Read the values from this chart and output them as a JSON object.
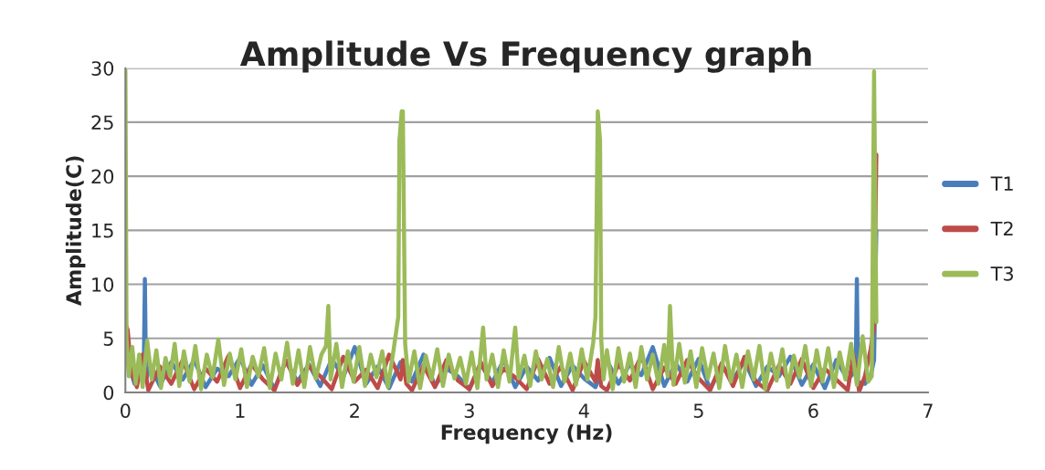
{
  "chart_data": {
    "type": "line",
    "title": "Amplitude Vs Frequency graph",
    "xlabel": "Frequency (Hz)",
    "ylabel": "Amplitude(C)",
    "xlim": [
      0,
      7
    ],
    "xticks": [
      0,
      1,
      2,
      3,
      4,
      5,
      6,
      7
    ],
    "ylim": [
      0,
      30
    ],
    "yticks": [
      0,
      5,
      10,
      15,
      20,
      25,
      30
    ],
    "grid": "y",
    "legend": "right",
    "marker": "none",
    "line_style": "solid",
    "series": [
      {
        "name": "T1",
        "color": "#4a7ebb",
        "x": [
          0,
          0.03,
          0.08,
          0.12,
          0.16,
          0.17,
          0.18,
          0.22,
          0.3,
          0.4,
          0.5,
          0.6,
          0.7,
          0.8,
          0.9,
          1.0,
          1.1,
          1.2,
          1.3,
          1.4,
          1.5,
          1.6,
          1.7,
          1.8,
          1.9,
          2.0,
          2.1,
          2.2,
          2.3,
          2.4,
          2.5,
          2.6,
          2.7,
          2.8,
          2.9,
          3.0,
          3.1,
          3.2,
          3.3,
          3.4,
          3.5,
          3.6,
          3.7,
          3.8,
          3.9,
          4.0,
          4.1,
          4.2,
          4.3,
          4.4,
          4.5,
          4.6,
          4.7,
          4.8,
          4.9,
          5.0,
          5.1,
          5.2,
          5.3,
          5.4,
          5.5,
          5.6,
          5.7,
          5.8,
          5.9,
          6.0,
          6.1,
          6.2,
          6.3,
          6.37,
          6.38,
          6.39,
          6.45,
          6.5,
          6.53,
          6.55
        ],
        "values": [
          6,
          2.5,
          0.8,
          1.5,
          2,
          10.5,
          1.2,
          2.5,
          0.6,
          2.8,
          1.2,
          3.0,
          0.5,
          2.2,
          1.5,
          3.2,
          0.7,
          2.5,
          0.3,
          2.9,
          1.0,
          2.6,
          0.6,
          3.1,
          1.4,
          4.2,
          0.8,
          2.4,
          0.4,
          2.8,
          1.0,
          3.5,
          0.6,
          2.2,
          1.5,
          0.3,
          2.6,
          0.9,
          3.0,
          0.5,
          2.4,
          1.1,
          3.2,
          0.6,
          2.5,
          1.3,
          0.5,
          3.0,
          0.8,
          2.6,
          1.6,
          4.2,
          0.6,
          2.7,
          1.0,
          3.1,
          0.3,
          2.5,
          1.2,
          2.9,
          0.6,
          2.4,
          1.5,
          3.3,
          0.7,
          2.6,
          0.4,
          3.0,
          1.2,
          2.0,
          10.5,
          1.0,
          0.8,
          1.5,
          3,
          15
        ]
      },
      {
        "name": "T2",
        "color": "#be4b48",
        "x": [
          0,
          0.02,
          0.05,
          0.1,
          0.15,
          0.2,
          0.3,
          0.4,
          0.5,
          0.6,
          0.7,
          0.8,
          0.9,
          1.0,
          1.1,
          1.2,
          1.3,
          1.4,
          1.5,
          1.6,
          1.7,
          1.8,
          1.9,
          2.0,
          2.1,
          2.2,
          2.3,
          2.4,
          2.42,
          2.45,
          2.5,
          2.6,
          2.7,
          2.8,
          2.9,
          3.0,
          3.1,
          3.2,
          3.3,
          3.4,
          3.5,
          3.6,
          3.7,
          3.8,
          3.9,
          4.0,
          4.1,
          4.12,
          4.15,
          4.2,
          4.3,
          4.4,
          4.5,
          4.6,
          4.7,
          4.8,
          4.9,
          5.0,
          5.1,
          5.2,
          5.3,
          5.4,
          5.5,
          5.6,
          5.7,
          5.8,
          5.9,
          6.0,
          6.1,
          6.2,
          6.3,
          6.35,
          6.4,
          6.45,
          6.5,
          6.53,
          6.55
        ],
        "values": [
          6.3,
          5.8,
          2,
          0.5,
          3.5,
          0.2,
          2.4,
          0.8,
          3.0,
          0.3,
          2.2,
          1.0,
          3.4,
          0.4,
          2.6,
          1.2,
          0.2,
          3.0,
          0.7,
          2.4,
          1.5,
          0.3,
          3.3,
          1.0,
          2.1,
          0.4,
          3.5,
          1.2,
          3.0,
          0.8,
          0.2,
          2.5,
          0.5,
          3.0,
          1.1,
          0.3,
          2.8,
          0.6,
          2.2,
          1.4,
          0.3,
          3.1,
          0.8,
          2.4,
          0.2,
          2.9,
          1.0,
          3.0,
          0.6,
          0.2,
          2.6,
          1.1,
          3.4,
          0.3,
          2.3,
          0.8,
          3.0,
          1.3,
          0.2,
          2.7,
          0.6,
          3.3,
          1.0,
          0.2,
          2.5,
          0.8,
          3.1,
          0.4,
          2.2,
          1.2,
          0.2,
          3.5,
          0.1,
          1.5,
          4,
          6.2,
          22
        ]
      },
      {
        "name": "T3",
        "color": "#9bbb59",
        "x": [
          0,
          0.01,
          0.03,
          0.06,
          0.09,
          0.12,
          0.15,
          0.19,
          0.23,
          0.27,
          0.31,
          0.35,
          0.39,
          0.43,
          0.47,
          0.51,
          0.56,
          0.61,
          0.66,
          0.71,
          0.76,
          0.81,
          0.86,
          0.91,
          0.96,
          1.01,
          1.06,
          1.11,
          1.16,
          1.21,
          1.26,
          1.31,
          1.36,
          1.41,
          1.46,
          1.51,
          1.56,
          1.61,
          1.66,
          1.71,
          1.75,
          1.77,
          1.79,
          1.84,
          1.89,
          1.94,
          1.99,
          2.04,
          2.09,
          2.14,
          2.19,
          2.24,
          2.29,
          2.34,
          2.38,
          2.39,
          2.41,
          2.42,
          2.44,
          2.47,
          2.52,
          2.57,
          2.62,
          2.67,
          2.72,
          2.77,
          2.82,
          2.87,
          2.92,
          2.97,
          3.02,
          3.07,
          3.12,
          3.15,
          3.2,
          3.25,
          3.3,
          3.35,
          3.4,
          3.43,
          3.48,
          3.53,
          3.58,
          3.63,
          3.68,
          3.73,
          3.78,
          3.83,
          3.88,
          3.93,
          3.98,
          4.03,
          4.08,
          4.1,
          4.12,
          4.14,
          4.15,
          4.17,
          4.2,
          4.25,
          4.3,
          4.35,
          4.4,
          4.45,
          4.5,
          4.55,
          4.6,
          4.65,
          4.7,
          4.73,
          4.75,
          4.78,
          4.83,
          4.88,
          4.93,
          4.98,
          5.03,
          5.08,
          5.13,
          5.18,
          5.23,
          5.28,
          5.33,
          5.38,
          5.43,
          5.48,
          5.53,
          5.58,
          5.63,
          5.68,
          5.73,
          5.78,
          5.83,
          5.88,
          5.93,
          5.98,
          6.03,
          6.08,
          6.13,
          6.18,
          6.23,
          6.28,
          6.33,
          6.38,
          6.43,
          6.48,
          6.51,
          6.53,
          6.55
        ],
        "values": [
          29.8,
          5,
          1.5,
          4.2,
          0.8,
          3.5,
          0.5,
          4.8,
          1.2,
          3.9,
          0.4,
          3.2,
          1.5,
          4.5,
          0.6,
          3.8,
          1.0,
          4.3,
          0.3,
          3.5,
          1.4,
          4.9,
          0.7,
          3.6,
          1.2,
          4.0,
          0.5,
          3.3,
          1.5,
          4.1,
          0.4,
          3.6,
          1.2,
          4.6,
          0.8,
          3.9,
          0.5,
          4.2,
          1.3,
          3.5,
          4.3,
          8,
          1.2,
          4.5,
          0.5,
          3.8,
          1.0,
          4.2,
          0.6,
          3.5,
          1.4,
          3.8,
          0.5,
          4.0,
          7,
          23.3,
          26,
          26,
          4.5,
          1.0,
          3.8,
          0.4,
          3.4,
          1.2,
          4.0,
          0.6,
          3.5,
          1.3,
          3.2,
          0.8,
          3.7,
          0.4,
          6,
          1.2,
          3.5,
          0.5,
          3.9,
          1.0,
          6,
          1.3,
          3.4,
          0.6,
          3.8,
          1.2,
          3.1,
          0.5,
          4.2,
          1.0,
          3.6,
          0.7,
          4.0,
          1.2,
          4.6,
          7,
          26,
          23.3,
          5,
          1.2,
          3.9,
          0.3,
          4.1,
          1.0,
          3.6,
          0.5,
          4.2,
          1.2,
          3.5,
          0.8,
          4.4,
          1.5,
          8,
          0.7,
          4.5,
          0.9,
          3.8,
          0.5,
          4.1,
          1.3,
          3.6,
          0.4,
          4.3,
          1.0,
          3.5,
          0.5,
          3.8,
          1.2,
          4.3,
          0.3,
          3.6,
          1.1,
          4.0,
          0.5,
          3.4,
          1.4,
          4.3,
          0.6,
          3.9,
          1.0,
          4.1,
          0.5,
          3.7,
          1.2,
          4.5,
          0.7,
          5.2,
          1.0,
          1.5,
          29.7,
          6.5
        ]
      }
    ]
  }
}
